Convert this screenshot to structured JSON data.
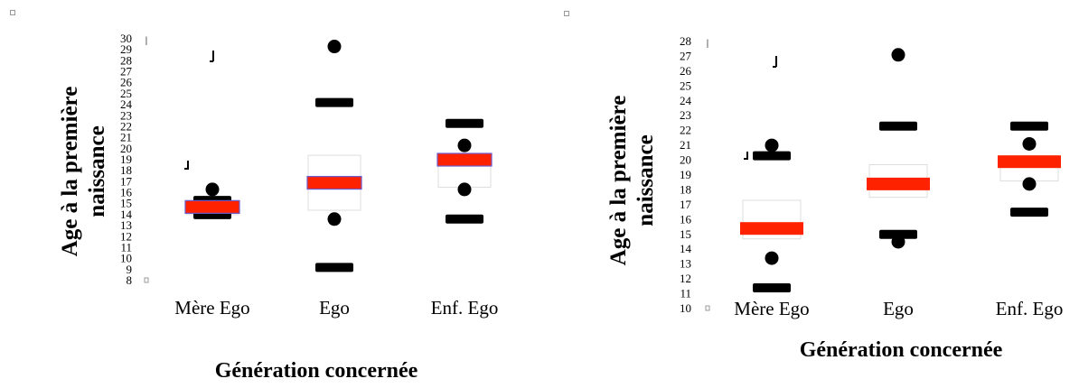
{
  "colors": {
    "median": "#ff2200",
    "median_border": "#6a5acd",
    "whisker": "#000000",
    "box_fill": "#ffffff",
    "box_edge": "#dddddd"
  },
  "chart_data": [
    {
      "type": "box",
      "xlabel": "Génération concernée",
      "ylabel_line1": "Age à la première",
      "ylabel_line2": "naissance",
      "yticks": [
        8,
        9,
        10,
        11,
        12,
        13,
        14,
        15,
        16,
        17,
        18,
        19,
        20,
        21,
        22,
        23,
        24,
        25,
        26,
        27,
        28,
        29,
        30
      ],
      "ytick_labels": [
        "8",
        "9",
        "10",
        "11",
        "12",
        "13",
        "14",
        "15",
        "16",
        "17",
        "18",
        "19",
        "20",
        "21",
        "22",
        "23",
        "24",
        "25",
        "26",
        "27",
        "28",
        "29",
        "30"
      ],
      "ylim": [
        8,
        30
      ],
      "categories": [
        "Mère Ego",
        "Ego",
        "Enf. Ego"
      ],
      "boxes": [
        {
          "whisker_low": 14.0,
          "q1": 14.0,
          "median": 14.7,
          "q3": 15.3,
          "whisker_high": 15.3,
          "outliers": [
            16.3
          ]
        },
        {
          "whisker_low": 9.2,
          "q1": 14.4,
          "median": 16.9,
          "q3": 19.4,
          "whisker_high": 24.2,
          "outliers": [
            29.3,
            13.6
          ]
        },
        {
          "whisker_low": 13.6,
          "q1": 16.5,
          "median": 19.0,
          "q3": 19.4,
          "whisker_high": 22.3,
          "outliers": [
            20.3,
            16.3
          ]
        }
      ]
    },
    {
      "type": "box",
      "xlabel": "Génération concernée",
      "ylabel_line1": "Age à la première",
      "ylabel_line2": "naissance",
      "yticks": [
        10,
        11,
        12,
        13,
        14,
        15,
        16,
        17,
        18,
        19,
        20,
        21,
        22,
        23,
        24,
        25,
        26,
        27,
        28
      ],
      "ytick_labels": [
        "10",
        "11",
        "12",
        "13",
        "14",
        "15",
        "16",
        "17",
        "18",
        "19",
        "20",
        "21",
        "22",
        "23",
        "24",
        "25",
        "26",
        "27",
        "28"
      ],
      "ylim": [
        10,
        28
      ],
      "categories": [
        "Mère Ego",
        "Ego",
        "Enf. Ego"
      ],
      "boxes": [
        {
          "whisker_low": 11.4,
          "q1": 14.7,
          "median": 15.4,
          "q3": 17.3,
          "whisker_high": 20.3,
          "outliers": [
            21.0,
            13.4
          ]
        },
        {
          "whisker_low": 15.0,
          "q1": 17.5,
          "median": 18.4,
          "q3": 19.7,
          "whisker_high": 22.3,
          "outliers": [
            27.1,
            14.5
          ]
        },
        {
          "whisker_low": 16.5,
          "q1": 18.6,
          "median": 19.9,
          "q3": 20.3,
          "whisker_high": 22.3,
          "outliers": [
            21.1,
            18.4
          ]
        }
      ]
    }
  ]
}
